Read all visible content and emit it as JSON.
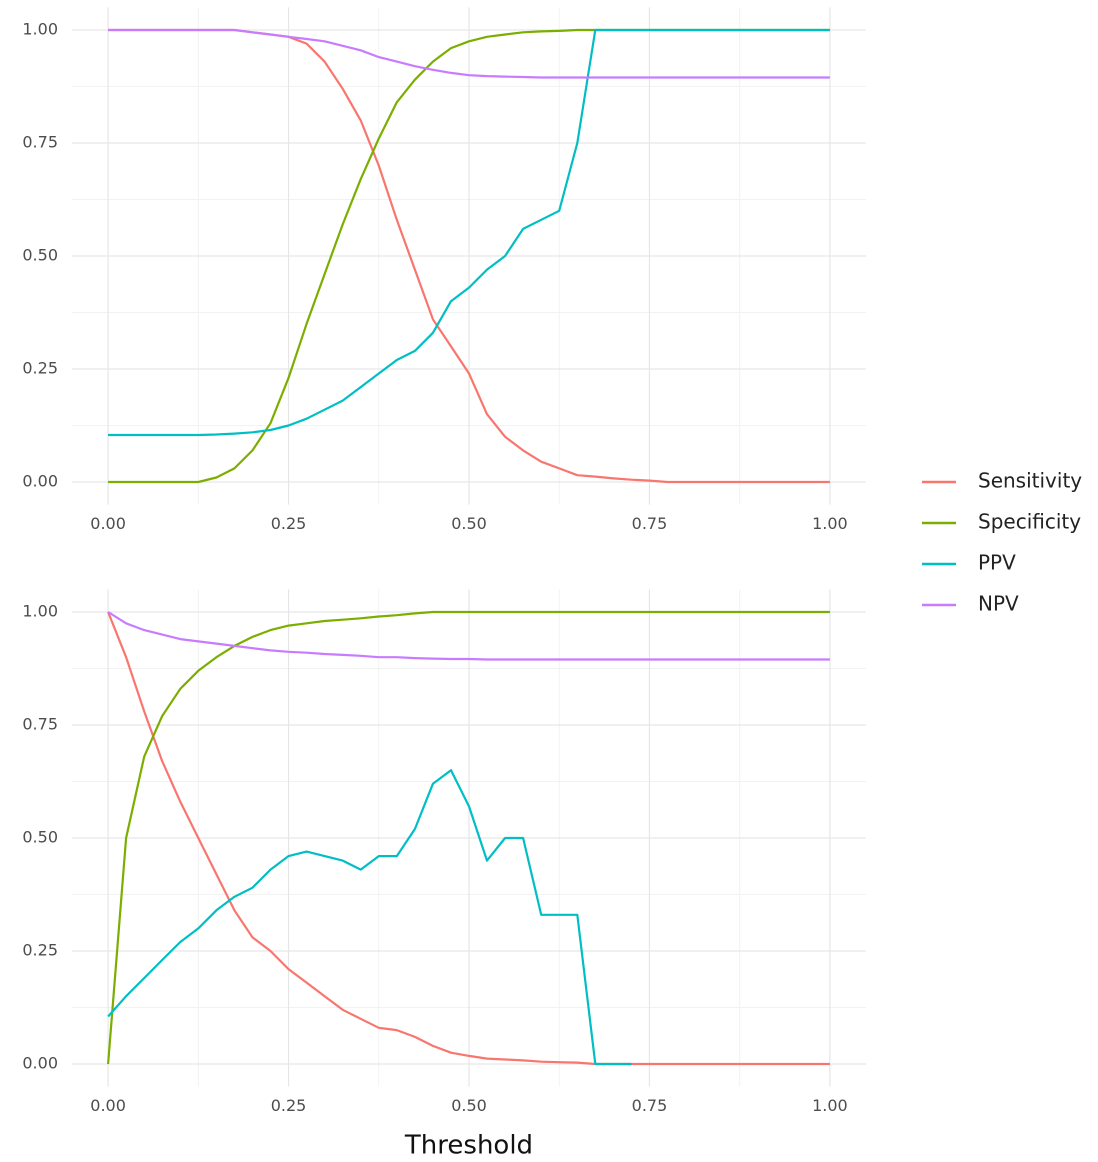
{
  "chart_data": [
    {
      "type": "line",
      "xlim": [
        -0.05,
        1.05
      ],
      "ylim": [
        -0.05,
        1.05
      ],
      "xticks": [
        {
          "value": 0,
          "label": "0.00"
        },
        {
          "value": 0.25,
          "label": "0.25"
        },
        {
          "value": 0.5,
          "label": "0.50"
        },
        {
          "value": 0.75,
          "label": "0.75"
        },
        {
          "value": 1,
          "label": "1.00"
        }
      ],
      "yticks": [
        {
          "value": 0,
          "label": "0.00"
        },
        {
          "value": 0.25,
          "label": "0.25"
        },
        {
          "value": 0.5,
          "label": "0.50"
        },
        {
          "value": 0.75,
          "label": "0.75"
        },
        {
          "value": 1,
          "label": "1.00"
        }
      ],
      "grid": true,
      "legend": "right",
      "x": [
        0,
        0.025,
        0.05,
        0.075,
        0.1,
        0.125,
        0.15,
        0.175,
        0.2,
        0.225,
        0.25,
        0.275,
        0.3,
        0.325,
        0.35,
        0.375,
        0.4,
        0.425,
        0.45,
        0.475,
        0.5,
        0.525,
        0.55,
        0.575,
        0.6,
        0.625,
        0.65,
        0.675,
        0.7,
        0.725,
        0.75,
        0.775,
        0.8,
        0.825,
        0.85,
        0.875,
        0.9,
        0.925,
        0.95,
        0.975,
        1
      ],
      "series": [
        {
          "name": "Sensitivity",
          "color": "#f8766d",
          "values": [
            1,
            1,
            1,
            1,
            1,
            1,
            1,
            1,
            0.995,
            0.99,
            0.985,
            0.97,
            0.93,
            0.87,
            0.8,
            0.7,
            0.58,
            0.47,
            0.36,
            0.3,
            0.24,
            0.15,
            0.1,
            0.07,
            0.045,
            0.03,
            0.015,
            0.012,
            0.008,
            0.005,
            0.003,
            0,
            0,
            0,
            0,
            0,
            0,
            0,
            0,
            0,
            0
          ]
        },
        {
          "name": "Specificity",
          "color": "#7cae00",
          "values": [
            0,
            0,
            0,
            0,
            0,
            0,
            0.01,
            0.03,
            0.07,
            0.13,
            0.23,
            0.35,
            0.46,
            0.57,
            0.67,
            0.76,
            0.84,
            0.89,
            0.93,
            0.96,
            0.975,
            0.985,
            0.99,
            0.995,
            0.997,
            0.998,
            1,
            1,
            1,
            1,
            1,
            1,
            1,
            1,
            1,
            1,
            1,
            1,
            1,
            1,
            1
          ]
        },
        {
          "name": "PPV",
          "color": "#00bfc4",
          "values": [
            0.104,
            0.104,
            0.104,
            0.104,
            0.104,
            0.104,
            0.105,
            0.107,
            0.11,
            0.115,
            0.125,
            0.14,
            0.16,
            0.18,
            0.21,
            0.24,
            0.27,
            0.29,
            0.33,
            0.4,
            0.43,
            0.47,
            0.5,
            0.56,
            0.58,
            0.6,
            0.75,
            1,
            1,
            1,
            1,
            1,
            1,
            1,
            1,
            1,
            1,
            1,
            1,
            1,
            1
          ]
        },
        {
          "name": "NPV",
          "color": "#c77cff",
          "values": [
            1,
            1,
            1,
            1,
            1,
            1,
            1,
            1,
            0.995,
            0.99,
            0.985,
            0.98,
            0.975,
            0.965,
            0.955,
            0.94,
            0.93,
            0.92,
            0.912,
            0.905,
            0.9,
            0.898,
            0.897,
            0.896,
            0.895,
            0.895,
            0.895,
            0.895,
            0.895,
            0.895,
            0.895,
            0.895,
            0.895,
            0.895,
            0.895,
            0.895,
            0.895,
            0.895,
            0.895,
            0.895,
            0.895
          ]
        }
      ]
    },
    {
      "type": "line",
      "x_label": "Threshold",
      "xlim": [
        -0.05,
        1.05
      ],
      "ylim": [
        -0.05,
        1.05
      ],
      "xticks": [
        {
          "value": 0,
          "label": "0.00"
        },
        {
          "value": 0.25,
          "label": "0.25"
        },
        {
          "value": 0.5,
          "label": "0.50"
        },
        {
          "value": 0.75,
          "label": "0.75"
        },
        {
          "value": 1,
          "label": "1.00"
        }
      ],
      "yticks": [
        {
          "value": 0,
          "label": "0.00"
        },
        {
          "value": 0.25,
          "label": "0.25"
        },
        {
          "value": 0.5,
          "label": "0.50"
        },
        {
          "value": 0.75,
          "label": "0.75"
        },
        {
          "value": 1,
          "label": "1.00"
        }
      ],
      "grid": true,
      "x": [
        0,
        0.025,
        0.05,
        0.075,
        0.1,
        0.125,
        0.15,
        0.175,
        0.2,
        0.225,
        0.25,
        0.275,
        0.3,
        0.325,
        0.35,
        0.375,
        0.4,
        0.425,
        0.45,
        0.475,
        0.5,
        0.525,
        0.55,
        0.575,
        0.6,
        0.625,
        0.65,
        0.675,
        0.7,
        0.725,
        0.75,
        0.775,
        0.8,
        0.825,
        0.85,
        0.875,
        0.9,
        0.925,
        0.95,
        0.975,
        1
      ],
      "series": [
        {
          "color": "#f8766d",
          "values": [
            1,
            0.9,
            0.78,
            0.67,
            0.58,
            0.5,
            0.42,
            0.34,
            0.28,
            0.25,
            0.21,
            0.18,
            0.15,
            0.12,
            0.1,
            0.08,
            0.075,
            0.06,
            0.04,
            0.025,
            0.018,
            0.012,
            0.01,
            0.008,
            0.005,
            0.004,
            0.003,
            0,
            0,
            0,
            0,
            0,
            0,
            0,
            0,
            0,
            0,
            0,
            0,
            0,
            0
          ]
        },
        {
          "color": "#7cae00",
          "values": [
            0,
            0.5,
            0.68,
            0.77,
            0.83,
            0.87,
            0.9,
            0.925,
            0.945,
            0.96,
            0.97,
            0.975,
            0.98,
            0.983,
            0.986,
            0.99,
            0.993,
            0.997,
            1,
            1,
            1,
            1,
            1,
            1,
            1,
            1,
            1,
            1,
            1,
            1,
            1,
            1,
            1,
            1,
            1,
            1,
            1,
            1,
            1,
            1,
            1
          ]
        },
        {
          "color": "#00bfc4",
          "values": [
            0.105,
            0.15,
            0.19,
            0.23,
            0.27,
            0.3,
            0.34,
            0.37,
            0.39,
            0.43,
            0.46,
            0.47,
            0.46,
            0.45,
            0.43,
            0.46,
            0.46,
            0.52,
            0.62,
            0.65,
            0.57,
            0.45,
            0.5,
            0.5,
            0.33,
            0.33,
            0.33,
            0,
            0,
            0,
            null,
            null,
            null,
            null,
            null,
            null,
            null,
            null,
            null,
            null,
            null
          ]
        },
        {
          "color": "#c77cff",
          "values": [
            1,
            0.975,
            0.96,
            0.95,
            0.94,
            0.935,
            0.93,
            0.925,
            0.92,
            0.915,
            0.912,
            0.91,
            0.907,
            0.905,
            0.903,
            0.9,
            0.9,
            0.898,
            0.897,
            0.896,
            0.896,
            0.895,
            0.895,
            0.895,
            0.895,
            0.895,
            0.895,
            0.895,
            0.895,
            0.895,
            0.895,
            0.895,
            0.895,
            0.895,
            0.895,
            0.895,
            0.895,
            0.895,
            0.895,
            0.895,
            0.895
          ]
        }
      ]
    }
  ]
}
